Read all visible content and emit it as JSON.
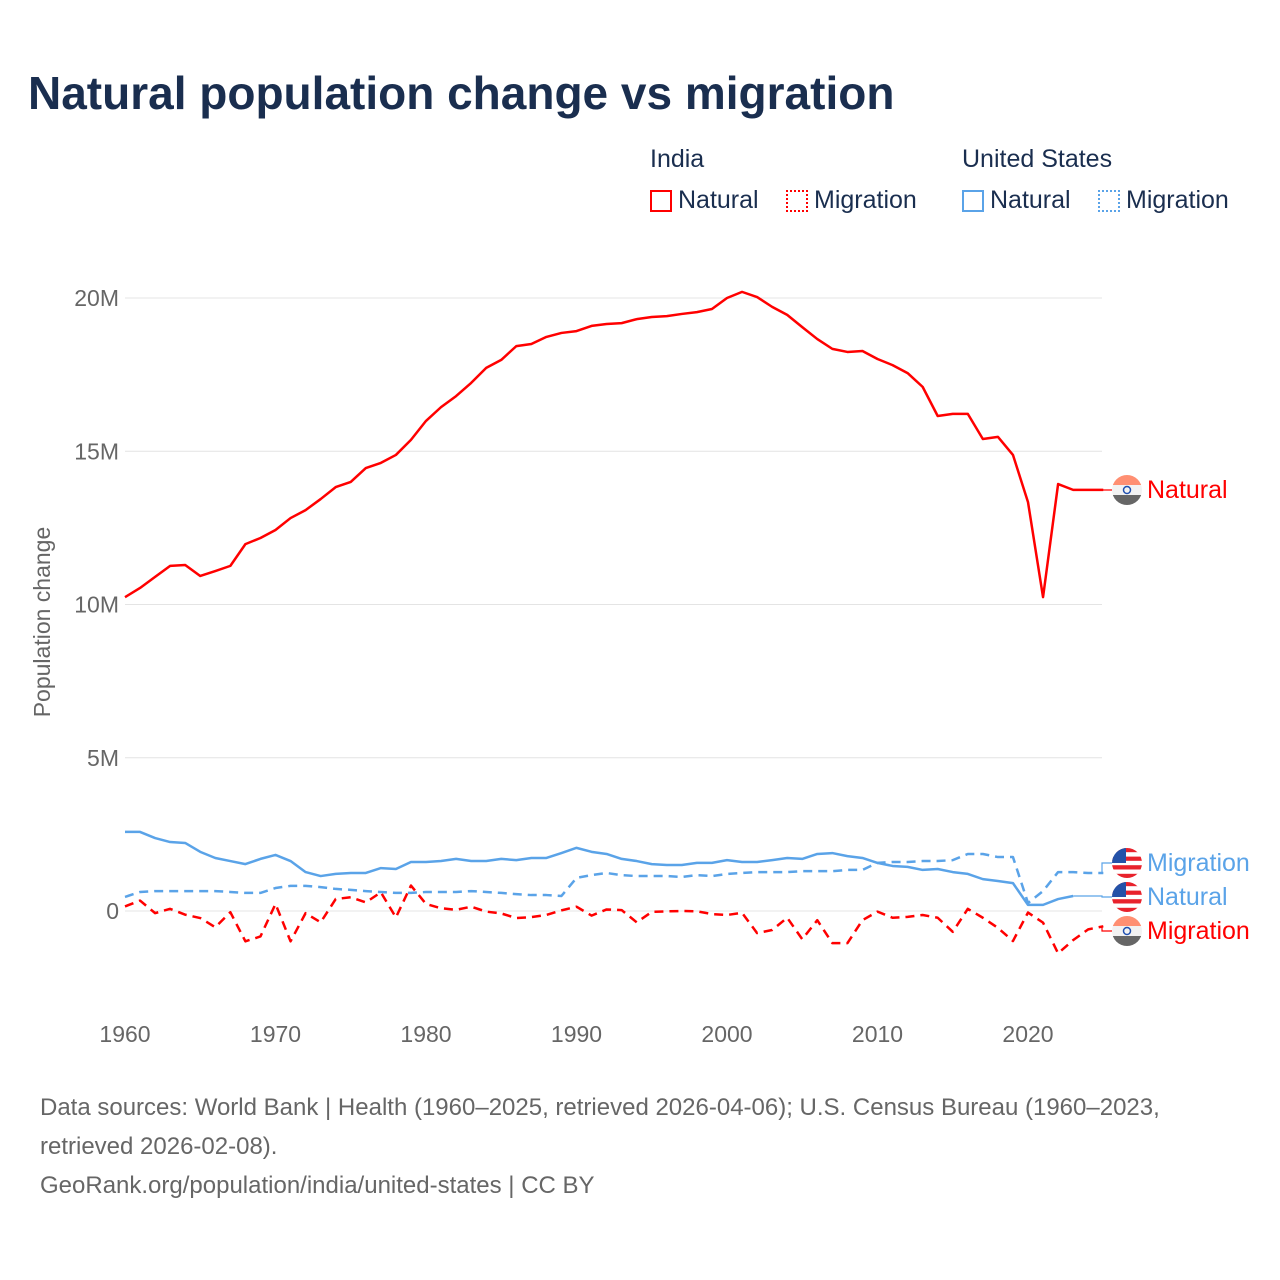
{
  "title": "Natural population change vs migration",
  "legend": {
    "groups": [
      {
        "name": "India",
        "items": [
          "Natural",
          "Migration"
        ]
      },
      {
        "name": "United States",
        "items": [
          "Natural",
          "Migration"
        ]
      }
    ]
  },
  "footer": {
    "line1": "Data sources: World Bank | Health (1960–2025, retrieved 2026-04-06); U.S. Census Bureau (1960–2023,",
    "line2": "retrieved 2026-02-08).",
    "line3": "GeoRank.org/population/india/united-states | CC BY"
  },
  "colors": {
    "india": "#ff0000",
    "us": "#5aa3e8"
  },
  "chart_data": {
    "type": "line",
    "title": "Natural population change vs migration",
    "ylabel": "Population change",
    "xlabel": "",
    "xlim": [
      1960,
      2025
    ],
    "ylim": [
      -1.5,
      20.5
    ],
    "units": "millions",
    "xticks": [
      1960,
      1970,
      1980,
      1990,
      2000,
      2010,
      2020
    ],
    "xtick_labels": [
      "1960",
      "1970",
      "1980",
      "1990",
      "2000",
      "2010",
      "2020"
    ],
    "yticks": [
      0,
      5,
      10,
      15,
      20
    ],
    "ytick_labels": [
      "0",
      "5M",
      "10M",
      "15M",
      "20M"
    ],
    "grid": true,
    "legend_position": "top-right",
    "series": [
      {
        "name": "India Natural",
        "country": "India",
        "kind": "Natural",
        "label": "Natural",
        "dash": false,
        "start": 1960,
        "values": [
          10.24,
          10.54,
          10.9,
          11.26,
          11.29,
          10.93,
          11.09,
          11.26,
          11.97,
          12.17,
          12.43,
          12.82,
          13.08,
          13.44,
          13.83,
          14.0,
          14.45,
          14.62,
          14.88,
          15.37,
          15.99,
          16.44,
          16.8,
          17.23,
          17.72,
          17.98,
          18.43,
          18.5,
          18.73,
          18.86,
          18.92,
          19.09,
          19.15,
          19.18,
          19.31,
          19.38,
          19.41,
          19.48,
          19.54,
          19.64,
          20.0,
          20.2,
          20.03,
          19.71,
          19.45,
          19.05,
          18.66,
          18.34,
          18.24,
          18.27,
          18.01,
          17.81,
          17.55,
          17.1,
          16.15,
          16.22,
          16.22,
          15.4,
          15.47,
          14.88,
          13.34,
          10.24,
          13.93,
          13.74,
          13.74,
          13.74
        ]
      },
      {
        "name": "India Migration",
        "country": "India",
        "kind": "Migration",
        "label": "Migration",
        "dash": true,
        "start": 1960,
        "values": [
          0.15,
          0.34,
          -0.07,
          0.07,
          -0.12,
          -0.23,
          -0.53,
          -0.04,
          -0.99,
          -0.83,
          0.23,
          -0.99,
          -0.07,
          -0.37,
          0.39,
          0.45,
          0.28,
          0.61,
          -0.21,
          0.83,
          0.23,
          0.09,
          0.04,
          0.14,
          -0.02,
          -0.08,
          -0.23,
          -0.2,
          -0.13,
          0.02,
          0.14,
          -0.15,
          0.05,
          0.03,
          -0.37,
          -0.03,
          -0.01,
          0.0,
          -0.01,
          -0.1,
          -0.13,
          -0.06,
          -0.72,
          -0.62,
          -0.22,
          -0.92,
          -0.3,
          -1.05,
          -1.05,
          -0.3,
          -0.02,
          -0.22,
          -0.19,
          -0.13,
          -0.22,
          -0.68,
          0.07,
          -0.22,
          -0.55,
          -0.98,
          -0.05,
          -0.38,
          -1.38,
          -0.95,
          -0.6,
          -0.5
        ]
      },
      {
        "name": "United States Natural",
        "country": "United States",
        "kind": "Natural",
        "label": "Natural",
        "dash": false,
        "start": 1960,
        "values": [
          2.58,
          2.58,
          2.38,
          2.25,
          2.22,
          1.93,
          1.73,
          1.63,
          1.53,
          1.7,
          1.83,
          1.63,
          1.27,
          1.14,
          1.21,
          1.24,
          1.24,
          1.4,
          1.37,
          1.6,
          1.6,
          1.63,
          1.7,
          1.63,
          1.63,
          1.7,
          1.66,
          1.73,
          1.73,
          1.89,
          2.06,
          1.93,
          1.86,
          1.7,
          1.63,
          1.53,
          1.5,
          1.5,
          1.57,
          1.57,
          1.66,
          1.6,
          1.6,
          1.66,
          1.73,
          1.7,
          1.86,
          1.89,
          1.79,
          1.73,
          1.57,
          1.47,
          1.44,
          1.34,
          1.37,
          1.27,
          1.21,
          1.04,
          0.98,
          0.91,
          0.2,
          0.2,
          0.39,
          0.49
        ]
      },
      {
        "name": "United States Migration",
        "country": "United States",
        "kind": "Migration",
        "label": "Migration",
        "dash": true,
        "start": 1960,
        "values": [
          0.46,
          0.62,
          0.65,
          0.65,
          0.65,
          0.65,
          0.65,
          0.62,
          0.59,
          0.59,
          0.75,
          0.82,
          0.82,
          0.78,
          0.72,
          0.69,
          0.65,
          0.62,
          0.59,
          0.59,
          0.62,
          0.62,
          0.62,
          0.65,
          0.62,
          0.59,
          0.55,
          0.52,
          0.52,
          0.49,
          1.08,
          1.17,
          1.24,
          1.17,
          1.14,
          1.14,
          1.14,
          1.11,
          1.17,
          1.14,
          1.21,
          1.24,
          1.27,
          1.27,
          1.27,
          1.3,
          1.3,
          1.3,
          1.34,
          1.34,
          1.57,
          1.6,
          1.6,
          1.63,
          1.63,
          1.66,
          1.86,
          1.86,
          1.76,
          1.76,
          0.26,
          0.65,
          1.27,
          1.27,
          1.24,
          1.24
        ]
      }
    ]
  }
}
